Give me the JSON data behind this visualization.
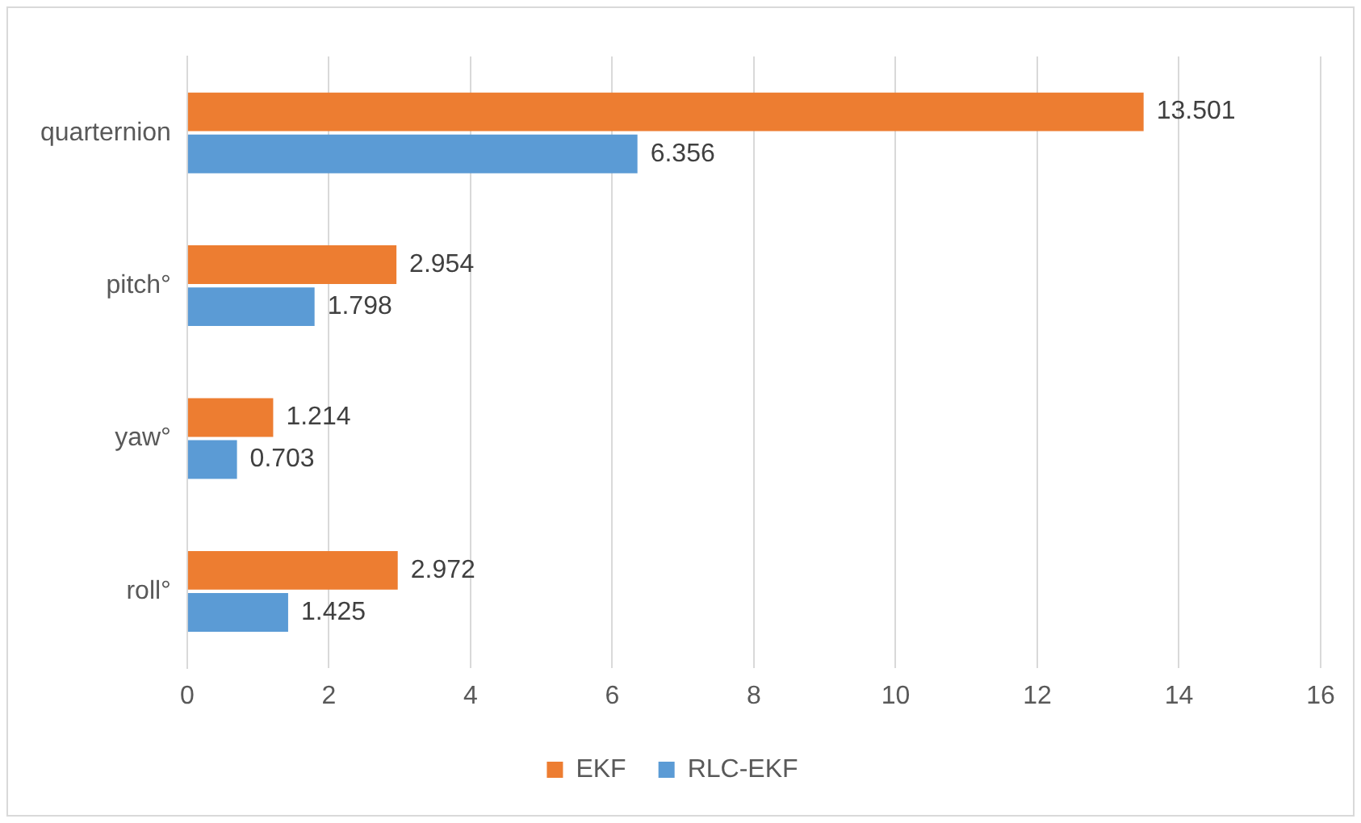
{
  "chart_data": {
    "type": "bar",
    "orientation": "horizontal",
    "categories": [
      "quarternion",
      "pitch°",
      "yaw°",
      "roll°"
    ],
    "series": [
      {
        "name": "EKF",
        "color": "#ed7d31",
        "values": [
          13.501,
          2.954,
          1.214,
          2.972
        ]
      },
      {
        "name": "RLC-EKF",
        "color": "#5b9bd5",
        "values": [
          6.356,
          1.798,
          0.703,
          1.425
        ]
      }
    ],
    "xlim": [
      0,
      16
    ],
    "xticks": [
      0,
      2,
      4,
      6,
      8,
      10,
      12,
      14,
      16
    ],
    "grid": "x",
    "legend": "bottom",
    "data_labels": true
  }
}
